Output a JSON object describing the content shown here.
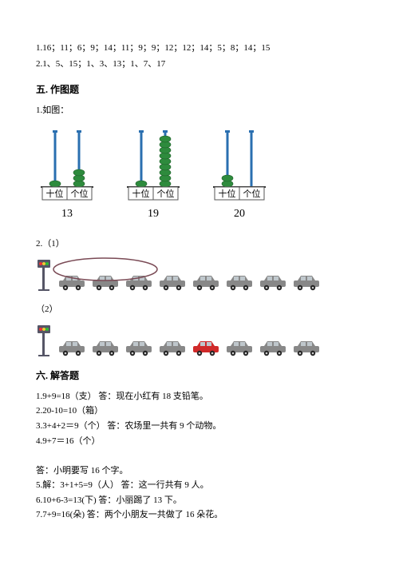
{
  "top": {
    "line1": "1.16；11；6；9；14；11；9；9；12；12；14；5；8；14；15",
    "line2": "2.1、5、15；1、3、13；1、7、17"
  },
  "section5": {
    "title": "五. 作图题",
    "q1": "1.如图：",
    "abacus": [
      {
        "tens": 1,
        "ones": 3,
        "label": "13",
        "tens_label": "十位",
        "ones_label": "个位"
      },
      {
        "tens": 1,
        "ones": 9,
        "label": "19",
        "tens_label": "十位",
        "ones_label": "个位"
      },
      {
        "tens": 2,
        "ones": 0,
        "label": "20",
        "tens_label": "十位",
        "ones_label": "个位"
      }
    ],
    "q2a": "2.（1）",
    "cars1": {
      "total": 8,
      "circled": 3,
      "highlight": -1
    },
    "q2b": "（2）",
    "cars2": {
      "total": 8,
      "circled": 0,
      "highlight": 4
    },
    "colors": {
      "bead": "#2e8b3d",
      "bead_dark": "#1d5e28",
      "rod": "#2a6fb0",
      "box_border": "#555",
      "car_body": "#888",
      "car_highlight": "#d02a2a",
      "car_window": "#bfc7cc",
      "circle_stroke": "#7a4a55",
      "light_pole": "#556"
    }
  },
  "section6": {
    "title": "六. 解答题",
    "lines": [
      "1.9+9=18（支）        答：现在小红有 18 支铅笔。",
      "2.20-10=10（箱）",
      "3.3+4+2＝9（个）        答：农场里一共有 9 个动物。",
      "4.9+7＝16（个）",
      "",
      "答：小明要写 16 个字。",
      "5.解：3+1+5=9（人）        答：这一行共有 9 人。",
      "6.10+6-3=13(下)        答：小丽踢了 13 下。",
      "7.7+9=16(朵)        答：两个小朋友一共做了 16 朵花。"
    ]
  }
}
